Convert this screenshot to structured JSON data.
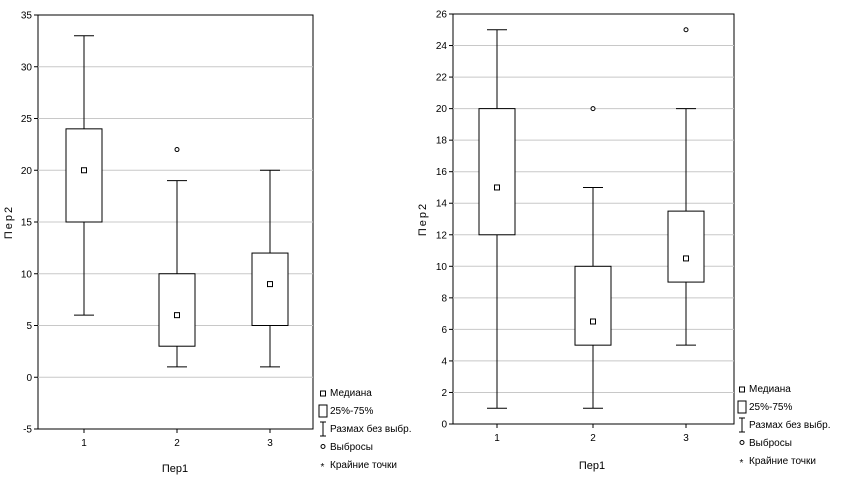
{
  "chart_data": [
    {
      "type": "boxplot",
      "xlabel": "Пер1",
      "ylabel": "Пер2",
      "ylim": [
        -5,
        35
      ],
      "yticks": [
        -5,
        0,
        5,
        10,
        15,
        20,
        25,
        30,
        35
      ],
      "categories": [
        "1",
        "2",
        "3"
      ],
      "grid": true,
      "boxes": [
        {
          "median": 20,
          "q1": 15,
          "q3": 24,
          "whisker_low": 6,
          "whisker_high": 33,
          "outliers": []
        },
        {
          "median": 6,
          "q1": 3,
          "q3": 10,
          "whisker_low": 1,
          "whisker_high": 19,
          "outliers": [
            22
          ]
        },
        {
          "median": 9,
          "q1": 5,
          "q3": 12,
          "whisker_low": 1,
          "whisker_high": 20,
          "outliers": []
        }
      ],
      "legend": {
        "placement": "bottom-right",
        "items": [
          "Медиана",
          "25%-75%",
          "Размах без выбр.",
          "Выбросы",
          "Крайние точки"
        ]
      }
    },
    {
      "type": "boxplot",
      "xlabel": "Пер1",
      "ylabel": "Пер2",
      "ylim": [
        0,
        26
      ],
      "yticks": [
        0,
        2,
        4,
        6,
        8,
        10,
        12,
        14,
        16,
        18,
        20,
        22,
        24,
        26
      ],
      "categories": [
        "1",
        "2",
        "3"
      ],
      "grid": true,
      "boxes": [
        {
          "median": 15,
          "q1": 12,
          "q3": 20,
          "whisker_low": 1,
          "whisker_high": 25,
          "outliers": []
        },
        {
          "median": 6.5,
          "q1": 5,
          "q3": 10,
          "whisker_low": 1,
          "whisker_high": 15,
          "outliers": [
            20
          ]
        },
        {
          "median": 10.5,
          "q1": 9,
          "q3": 13.5,
          "whisker_low": 5,
          "whisker_high": 20,
          "outliers": [
            25
          ]
        }
      ],
      "legend": {
        "placement": "bottom-right",
        "items": [
          "Медиана",
          "25%-75%",
          "Размах без выбр.",
          "Выбросы",
          "Крайние точки"
        ]
      }
    }
  ]
}
